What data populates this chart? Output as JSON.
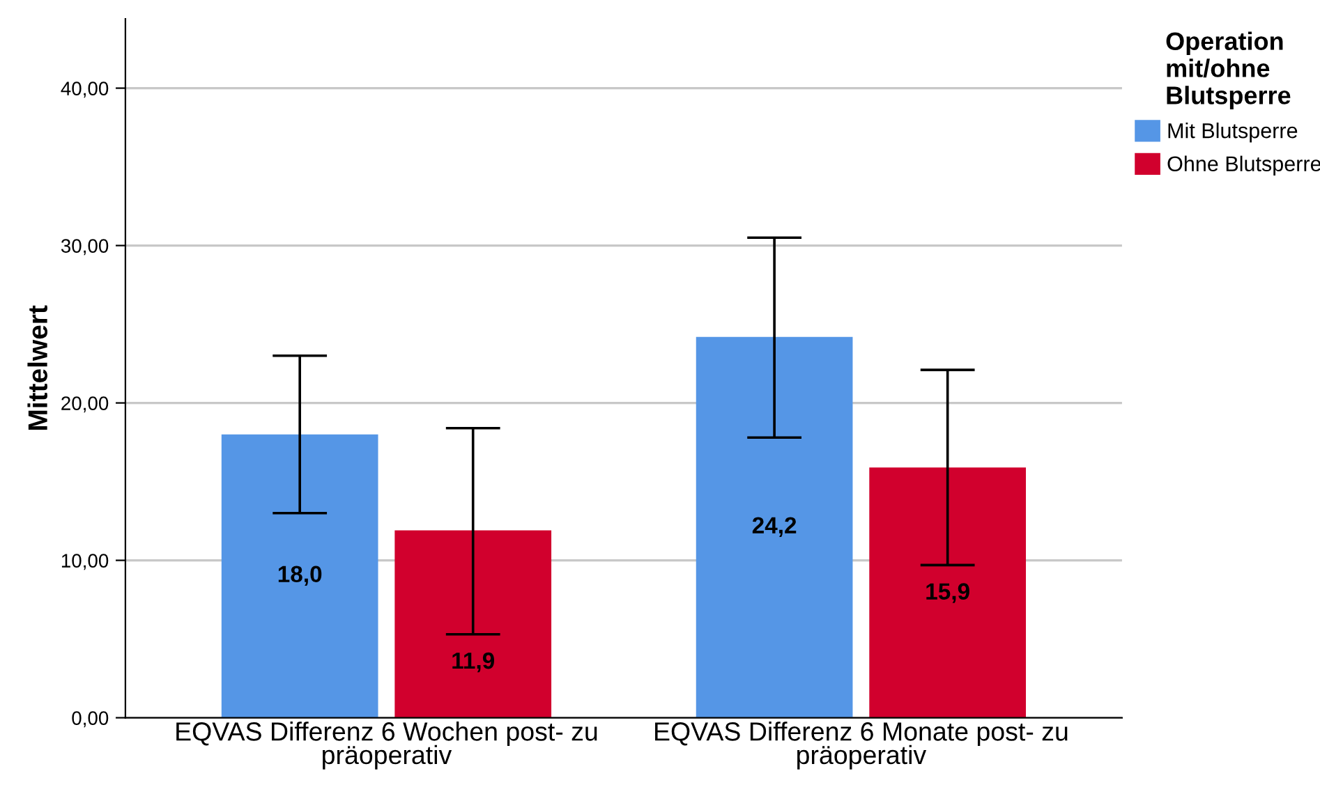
{
  "chart_data": {
    "type": "bar",
    "ylabel": "Mittelwert",
    "legend_title": "Operation mit/ohne Blutsperre",
    "categories": [
      "EQVAS Differenz 6 Wochen post- zu präoperativ",
      "EQVAS Differenz 6 Monate post- zu präoperativ"
    ],
    "series": [
      {
        "name": "Mit Blutsperre",
        "color": "#5596e6",
        "values": [
          18.0,
          24.2
        ],
        "errors": [
          [
            13.0,
            23.0
          ],
          [
            17.8,
            30.5
          ]
        ],
        "value_labels": [
          "18,0",
          "24,2"
        ]
      },
      {
        "name": "Ohne Blutsperre",
        "color": "#d1002d",
        "values": [
          11.9,
          15.9
        ],
        "errors": [
          [
            5.3,
            18.4
          ],
          [
            9.7,
            22.1
          ]
        ],
        "value_labels": [
          "11,9",
          "15,9"
        ]
      }
    ],
    "ylim": [
      0,
      44.4
    ],
    "yticks": [
      {
        "value": 0,
        "label": "0,00"
      },
      {
        "value": 10,
        "label": "10,00"
      },
      {
        "value": 20,
        "label": "20,00"
      },
      {
        "value": 30,
        "label": "30,00"
      },
      {
        "value": 40,
        "label": "40,00"
      }
    ],
    "grid": "y",
    "legend": "top right"
  }
}
